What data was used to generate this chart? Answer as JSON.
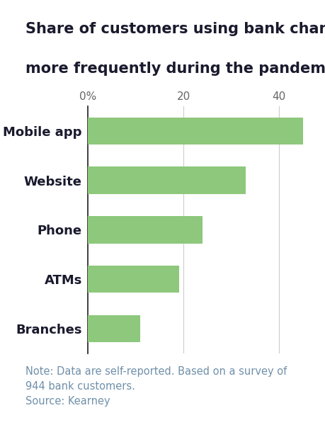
{
  "title_line1": "Share of customers using bank channels",
  "title_line2": "more frequently during the pandemic",
  "categories": [
    "Branches",
    "ATMs",
    "Phone",
    "Website",
    "Mobile app"
  ],
  "values": [
    11,
    19,
    24,
    33,
    45
  ],
  "bar_color": "#8dc87c",
  "xlim": [
    0,
    47
  ],
  "xticks": [
    0,
    20,
    40
  ],
  "xticklabels": [
    "0%",
    "20",
    "40"
  ],
  "note_line1": "Note: Data are self-reported. Based on a survey of",
  "note_line2": "944 bank customers.",
  "note_line3": "Source: Kearney",
  "note_color": "#7090aa",
  "title_color": "#1a1a2e",
  "label_color": "#1a1a2e",
  "background_color": "#ffffff",
  "grid_color": "#cccccc",
  "spine_color": "#333333",
  "bar_height": 0.55,
  "title_fontsize": 15,
  "label_fontsize": 13,
  "tick_fontsize": 11,
  "note_fontsize": 10.5
}
